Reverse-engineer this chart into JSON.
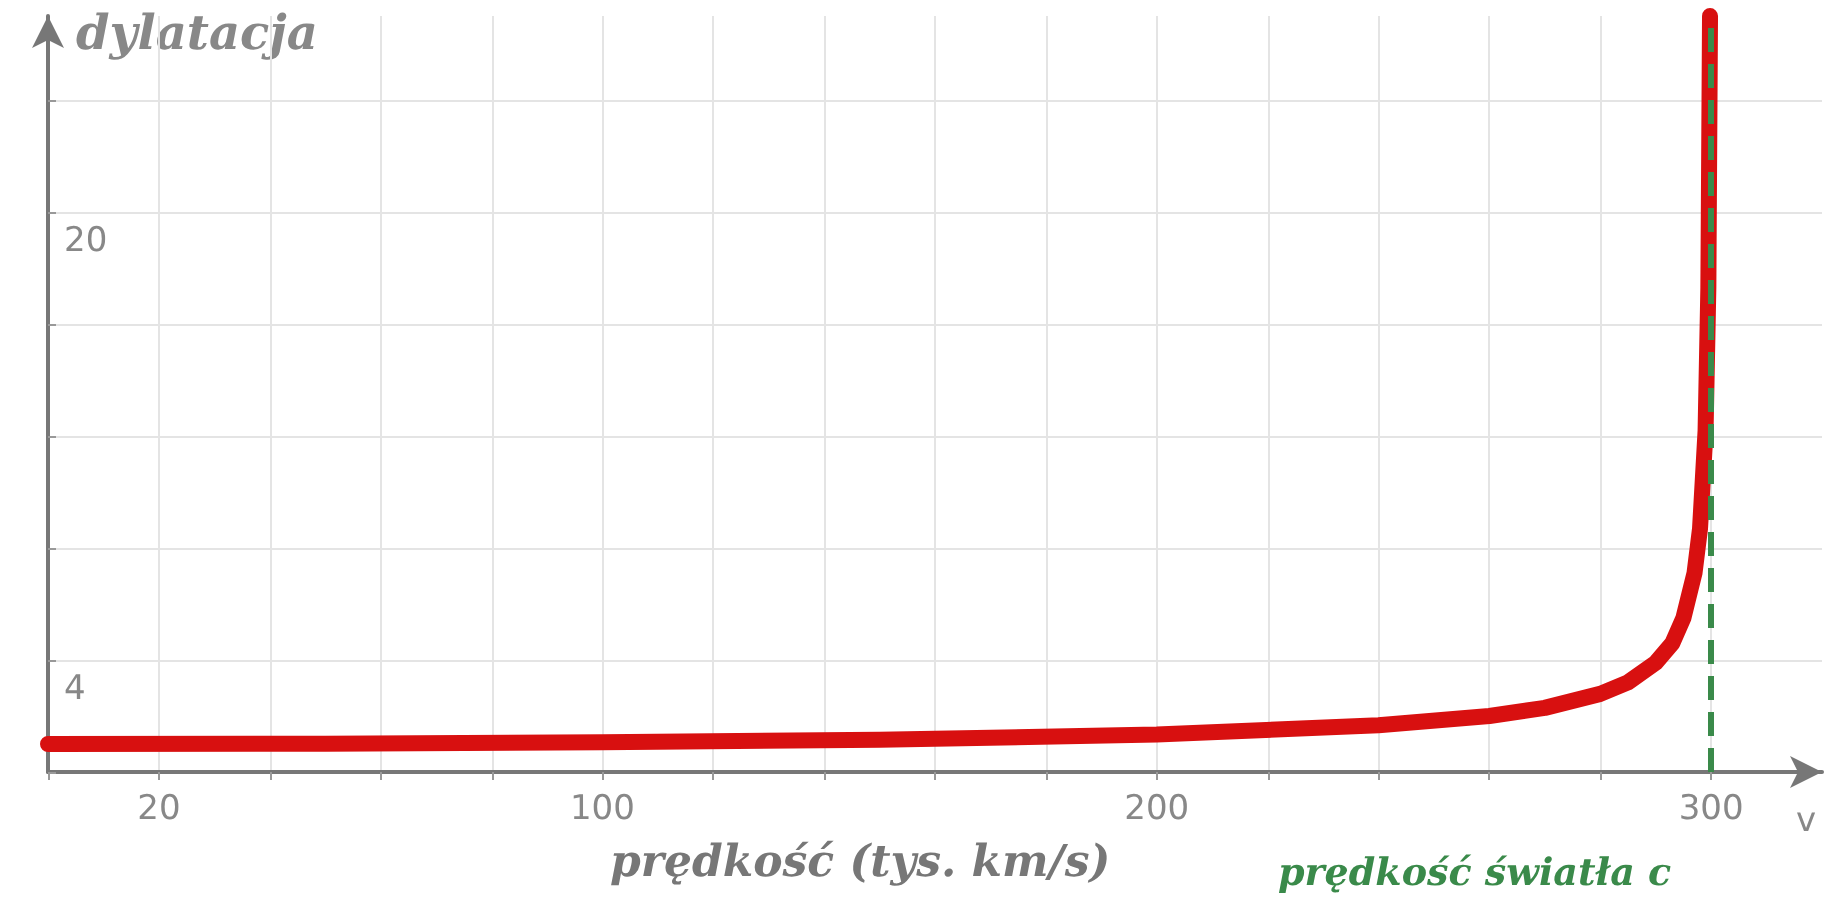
{
  "chart_data": {
    "type": "line",
    "xlabel": "prędkość (tys. km/s)",
    "ylabel": "dylatacja",
    "annotations": [
      "v"
    ],
    "x": [
      0,
      50,
      100,
      150,
      200,
      240,
      260,
      270,
      280,
      285,
      290,
      293,
      295,
      297,
      298,
      299,
      299.5,
      299.8
    ],
    "series": [
      {
        "color": "#d81010",
        "values": [
          1,
          1.01,
          1.06,
          1.15,
          1.34,
          1.67,
          2.0,
          2.29,
          2.79,
          3.2,
          3.9,
          4.6,
          5.5,
          7.1,
          8.7,
          12.2,
          17.3,
          27
        ]
      }
    ],
    "xlim": [
      0,
      320
    ],
    "ylim": [
      0,
      27
    ],
    "xticks": [
      {
        "value": 0,
        "label": null
      },
      20,
      {
        "value": 40,
        "label": null
      },
      {
        "value": 60,
        "label": null
      },
      {
        "value": 80,
        "label": null
      },
      100,
      {
        "value": 120,
        "label": null
      },
      {
        "value": 140,
        "label": null
      },
      {
        "value": 160,
        "label": null
      },
      {
        "value": 180,
        "label": null
      },
      200,
      {
        "value": 220,
        "label": null
      },
      {
        "value": 240,
        "label": null
      },
      {
        "value": 260,
        "label": null
      },
      {
        "value": 280,
        "label": null
      },
      300
    ],
    "yticks": [
      {
        "value": 0,
        "label": null
      },
      4,
      {
        "value": 8,
        "label": null
      },
      {
        "value": 12,
        "label": null
      },
      {
        "value": 16,
        "label": null
      },
      20,
      {
        "value": 24,
        "label": null
      }
    ],
    "ref_lines": [
      {
        "axis": "x",
        "value": 300,
        "label": "prędkość światła c",
        "color": "#3a8a4a",
        "line_style": "dashed"
      }
    ],
    "grid": true,
    "line_style": "solid"
  }
}
